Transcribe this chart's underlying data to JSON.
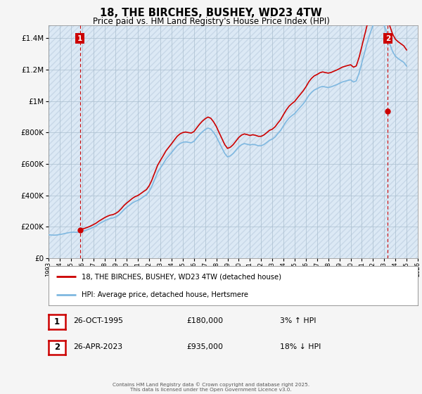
{
  "title_line1": "18, THE BIRCHES, BUSHEY, WD23 4TW",
  "title_line2": "Price paid vs. HM Land Registry's House Price Index (HPI)",
  "ylabel_ticks": [
    "£0",
    "£200K",
    "£400K",
    "£600K",
    "£800K",
    "£1M",
    "£1.2M",
    "£1.4M"
  ],
  "ylabel_values": [
    0,
    200000,
    400000,
    600000,
    800000,
    1000000,
    1200000,
    1400000
  ],
  "ylim": [
    0,
    1480000
  ],
  "xmin": 1993,
  "xmax": 2026,
  "background_color": "#f5f5f5",
  "plot_bg_color": "#dce9f5",
  "hatch_color": "#c8d8e8",
  "grid_color": "#aabfcf",
  "red_line_color": "#cc0000",
  "blue_line_color": "#7fb8e0",
  "dashed_red": "#cc0000",
  "point1_x": 1995.82,
  "point1_y": 180000,
  "point2_x": 2023.32,
  "point2_y": 935000,
  "legend_label1": "18, THE BIRCHES, BUSHEY, WD23 4TW (detached house)",
  "legend_label2": "HPI: Average price, detached house, Hertsmere",
  "annotation1_label": "1",
  "annotation2_label": "2",
  "table_row1": [
    "1",
    "26-OCT-1995",
    "£180,000",
    "3% ↑ HPI"
  ],
  "table_row2": [
    "2",
    "26-APR-2023",
    "£935,000",
    "18% ↓ HPI"
  ],
  "footer": "Contains HM Land Registry data © Crown copyright and database right 2025.\nThis data is licensed under the Open Government Licence v3.0.",
  "hpi_quarterly": {
    "years": [
      1993.0,
      1993.25,
      1993.5,
      1993.75,
      1994.0,
      1994.25,
      1994.5,
      1994.75,
      1995.0,
      1995.25,
      1995.5,
      1995.75,
      1996.0,
      1996.25,
      1996.5,
      1996.75,
      1997.0,
      1997.25,
      1997.5,
      1997.75,
      1998.0,
      1998.25,
      1998.5,
      1998.75,
      1999.0,
      1999.25,
      1999.5,
      1999.75,
      2000.0,
      2000.25,
      2000.5,
      2000.75,
      2001.0,
      2001.25,
      2001.5,
      2001.75,
      2002.0,
      2002.25,
      2002.5,
      2002.75,
      2003.0,
      2003.25,
      2003.5,
      2003.75,
      2004.0,
      2004.25,
      2004.5,
      2004.75,
      2005.0,
      2005.25,
      2005.5,
      2005.75,
      2006.0,
      2006.25,
      2006.5,
      2006.75,
      2007.0,
      2007.25,
      2007.5,
      2007.75,
      2008.0,
      2008.25,
      2008.5,
      2008.75,
      2009.0,
      2009.25,
      2009.5,
      2009.75,
      2010.0,
      2010.25,
      2010.5,
      2010.75,
      2011.0,
      2011.25,
      2011.5,
      2011.75,
      2012.0,
      2012.25,
      2012.5,
      2012.75,
      2013.0,
      2013.25,
      2013.5,
      2013.75,
      2014.0,
      2014.25,
      2014.5,
      2014.75,
      2015.0,
      2015.25,
      2015.5,
      2015.75,
      2016.0,
      2016.25,
      2016.5,
      2016.75,
      2017.0,
      2017.25,
      2017.5,
      2017.75,
      2018.0,
      2018.25,
      2018.5,
      2018.75,
      2019.0,
      2019.25,
      2019.5,
      2019.75,
      2020.0,
      2020.25,
      2020.5,
      2020.75,
      2021.0,
      2021.25,
      2021.5,
      2021.75,
      2022.0,
      2022.25,
      2022.5,
      2022.75,
      2023.0,
      2023.25,
      2023.5,
      2023.75,
      2024.0,
      2024.25,
      2024.5,
      2024.75,
      2025.0
    ],
    "values": [
      148000,
      147000,
      146000,
      147000,
      150000,
      153000,
      157000,
      161000,
      164000,
      165000,
      164000,
      166000,
      170000,
      175000,
      181000,
      188000,
      196000,
      205000,
      217000,
      227000,
      237000,
      245000,
      252000,
      255000,
      262000,
      273000,
      290000,
      309000,
      324000,
      337000,
      351000,
      361000,
      368000,
      379000,
      391000,
      402000,
      425000,
      460000,
      503000,
      545000,
      574000,
      601000,
      630000,
      651000,
      672000,
      694000,
      715000,
      729000,
      737000,
      740000,
      737000,
      734000,
      743000,
      765000,
      786000,
      804000,
      818000,
      828000,
      821000,
      800000,
      772000,
      736000,
      701000,
      666000,
      644000,
      651000,
      666000,
      687000,
      708000,
      722000,
      729000,
      725000,
      720000,
      724000,
      721000,
      715000,
      715000,
      723000,
      736000,
      750000,
      757000,
      771000,
      793000,
      813000,
      843000,
      870000,
      892000,
      907000,
      920000,
      941000,
      961000,
      981000,
      1005000,
      1034000,
      1055000,
      1070000,
      1078000,
      1088000,
      1093000,
      1089000,
      1086000,
      1090000,
      1097000,
      1104000,
      1112000,
      1121000,
      1126000,
      1131000,
      1135000,
      1121000,
      1128000,
      1177000,
      1243000,
      1309000,
      1375000,
      1433000,
      1481000,
      1510000,
      1526000,
      1516000,
      1482000,
      1428000,
      1363000,
      1315000,
      1285000,
      1270000,
      1258000,
      1246000,
      1222000
    ]
  }
}
